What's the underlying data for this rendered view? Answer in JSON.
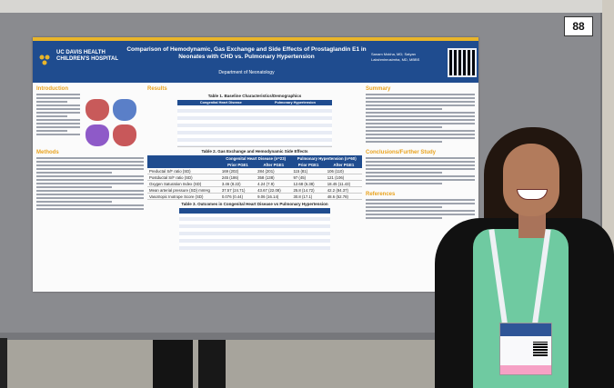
{
  "booth_number": "88",
  "poster": {
    "logo": "UC DAVIS HEALTH CHILDREN'S HOSPITAL",
    "title": "Comparison of Hemodynamic, Gas Exchange and Side Effects of Prostaglandin E1 in Neonates with CHD vs. Pulmonary Hypertension",
    "department": "Department of Neonatology",
    "authors": "Sanam Mokha, MD; Satyan Lakshminrusimha, MD, MBBS",
    "sections": {
      "introduction": "Introduction",
      "methods": "Methods",
      "results": "Results",
      "summary": "Summary",
      "conclusions": "Conclusions/Further Study",
      "references": "References"
    },
    "table1": {
      "title": "Table 1. Baseline Characteristics/Demographics",
      "columns": [
        "",
        "Congenital Heart Disease",
        "Pulmonary Hypertension"
      ]
    },
    "table2": {
      "title": "Table 2. Gas Exchange and Hemodynamic Side Effects",
      "group_headers": [
        "Congenital Heart Disease (n=23)",
        "Pulmonary Hypertension (n=60)"
      ],
      "columns": [
        "",
        "Prior PGE1",
        "After PGE1",
        "Prior PGE1",
        "After PGE1"
      ],
      "rows": [
        {
          "label": "Preductal S/F ratio (SD)",
          "cells": [
            "169 (202)",
            "284 (201)",
            "115 (81)",
            "106 (110)"
          ]
        },
        {
          "label": "Postductal S/F ratio (SD)",
          "cells": [
            "245 (186)",
            "358 (138)",
            "97 (45)",
            "121 (106)"
          ]
        },
        {
          "label": "Oxygen Saturation Index (SD)",
          "cells": [
            "3.46 (8.22)",
            "4.24 (7.9)",
            "12.68 (6.38)",
            "18.45 (11.43)"
          ]
        },
        {
          "label": "Mean arterial pressure (SD) mmHg",
          "cells": [
            "37.57 (24.71)",
            "43.67 (22.08)",
            "25.8 (14.72)",
            "42.2 (84.37)"
          ]
        },
        {
          "label": "Vasotropic Inotrope Score (SD)",
          "cells": [
            "0.076 (0.44)",
            "9.06 (16.14)",
            "30.8 (17.1)",
            "48.6 (52.78)"
          ]
        }
      ]
    },
    "table3": {
      "title": "Table 3. Outcomes in Congenital Heart Disease vs Pulmonary Hypertension"
    }
  },
  "colors": {
    "header_blue": "#1f4c8f",
    "accent_gold": "#e9b52a"
  }
}
